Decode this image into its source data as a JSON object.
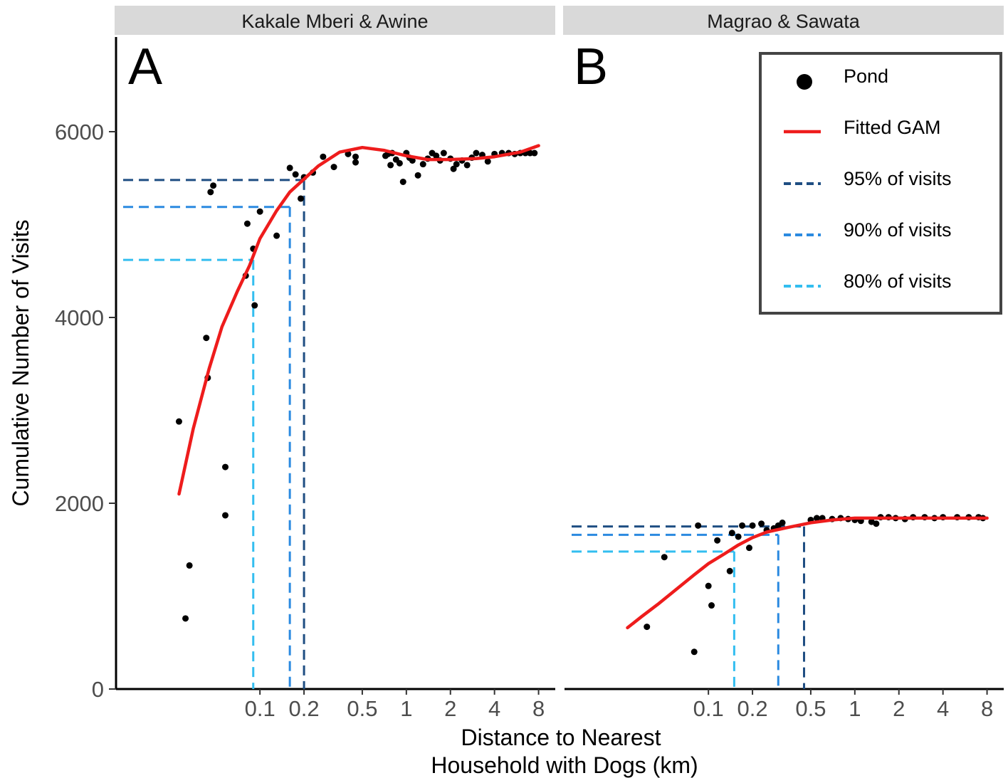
{
  "chart_data": {
    "type": "scatter",
    "xlabel": [
      "Distance to Nearest",
      "Household with Dogs (km)"
    ],
    "ylabel": "Cumulative Number of Visits",
    "x_scale": "log",
    "xlim": [
      0.015,
      10
    ],
    "ylim": [
      0,
      7000
    ],
    "x_ticks": [
      0.1,
      0.2,
      0.5,
      1,
      2,
      4,
      8
    ],
    "x_tick_labels": [
      "0.1",
      "0.2",
      "0.5",
      "1",
      "2",
      "4",
      "8"
    ],
    "y_ticks": [
      0,
      2000,
      4000,
      6000
    ],
    "y_tick_labels": [
      "0",
      "2000",
      "4000",
      "6000"
    ],
    "grid": false,
    "legend": {
      "placement": "top-right",
      "entries": [
        {
          "label": "Pond",
          "kind": "point",
          "color": "#000000"
        },
        {
          "label": "Fitted GAM",
          "kind": "line",
          "color": "#ee1c1c"
        },
        {
          "label": "95% of visits",
          "kind": "dash",
          "color": "#1f4e82"
        },
        {
          "label": "90% of visits",
          "kind": "dash",
          "color": "#2b8ae0"
        },
        {
          "label": "80% of visits",
          "kind": "dash",
          "color": "#33bef0"
        }
      ]
    },
    "panels": [
      {
        "strip": "Kakale Mberi & Awine",
        "letter": "A",
        "thresholds": [
          {
            "label": "95% of visits",
            "x": 0.2,
            "y": 5480,
            "color": "#1f4e82"
          },
          {
            "label": "90% of visits",
            "x": 0.16,
            "y": 5190,
            "color": "#2b8ae0"
          },
          {
            "label": "80% of visits",
            "x": 0.09,
            "y": 4620,
            "color": "#33bef0"
          }
        ],
        "gam": [
          [
            0.028,
            2100
          ],
          [
            0.035,
            2800
          ],
          [
            0.045,
            3450
          ],
          [
            0.055,
            3900
          ],
          [
            0.07,
            4280
          ],
          [
            0.085,
            4560
          ],
          [
            0.1,
            4850
          ],
          [
            0.13,
            5150
          ],
          [
            0.16,
            5350
          ],
          [
            0.2,
            5490
          ],
          [
            0.25,
            5630
          ],
          [
            0.35,
            5780
          ],
          [
            0.5,
            5830
          ],
          [
            0.7,
            5800
          ],
          [
            1,
            5740
          ],
          [
            1.4,
            5700
          ],
          [
            2,
            5700
          ],
          [
            3,
            5710
          ],
          [
            4,
            5730
          ],
          [
            6,
            5780
          ],
          [
            8,
            5850
          ]
        ],
        "points": [
          [
            0.028,
            2880
          ],
          [
            0.031,
            760
          ],
          [
            0.033,
            1330
          ],
          [
            0.043,
            3780
          ],
          [
            0.044,
            3350
          ],
          [
            0.046,
            5350
          ],
          [
            0.048,
            5420
          ],
          [
            0.058,
            2390
          ],
          [
            0.058,
            1870
          ],
          [
            0.08,
            4450
          ],
          [
            0.082,
            5010
          ],
          [
            0.09,
            4740
          ],
          [
            0.092,
            4130
          ],
          [
            0.1,
            5140
          ],
          [
            0.13,
            4880
          ],
          [
            0.16,
            5610
          ],
          [
            0.175,
            5540
          ],
          [
            0.19,
            5280
          ],
          [
            0.2,
            5510
          ],
          [
            0.23,
            5560
          ],
          [
            0.27,
            5730
          ],
          [
            0.32,
            5620
          ],
          [
            0.4,
            5760
          ],
          [
            0.45,
            5730
          ],
          [
            0.45,
            5670
          ],
          [
            0.72,
            5740
          ],
          [
            0.75,
            5760
          ],
          [
            0.78,
            5640
          ],
          [
            0.8,
            5770
          ],
          [
            0.85,
            5700
          ],
          [
            0.9,
            5660
          ],
          [
            0.95,
            5460
          ],
          [
            1,
            5770
          ],
          [
            1.05,
            5720
          ],
          [
            1.1,
            5690
          ],
          [
            1.2,
            5530
          ],
          [
            1.3,
            5650
          ],
          [
            1.4,
            5710
          ],
          [
            1.5,
            5770
          ],
          [
            1.6,
            5740
          ],
          [
            1.7,
            5690
          ],
          [
            1.8,
            5770
          ],
          [
            2,
            5710
          ],
          [
            2.1,
            5600
          ],
          [
            2.2,
            5650
          ],
          [
            2.4,
            5690
          ],
          [
            2.6,
            5640
          ],
          [
            2.8,
            5720
          ],
          [
            3,
            5770
          ],
          [
            3.3,
            5750
          ],
          [
            3.6,
            5680
          ],
          [
            4,
            5760
          ],
          [
            4.5,
            5770
          ],
          [
            5,
            5770
          ],
          [
            5.5,
            5760
          ],
          [
            6,
            5770
          ],
          [
            6.5,
            5770
          ],
          [
            7,
            5770
          ],
          [
            7.5,
            5770
          ]
        ]
      },
      {
        "strip": "Magrao & Sawata",
        "letter": "B",
        "thresholds": [
          {
            "label": "95% of visits",
            "x": 0.45,
            "y": 1750,
            "color": "#1f4e82"
          },
          {
            "label": "90% of visits",
            "x": 0.3,
            "y": 1660,
            "color": "#2b8ae0"
          },
          {
            "label": "80% of visits",
            "x": 0.15,
            "y": 1480,
            "color": "#33bef0"
          }
        ],
        "gam": [
          [
            0.028,
            660
          ],
          [
            0.035,
            780
          ],
          [
            0.045,
            910
          ],
          [
            0.06,
            1070
          ],
          [
            0.08,
            1230
          ],
          [
            0.1,
            1350
          ],
          [
            0.13,
            1460
          ],
          [
            0.16,
            1550
          ],
          [
            0.2,
            1630
          ],
          [
            0.25,
            1690
          ],
          [
            0.35,
            1740
          ],
          [
            0.5,
            1790
          ],
          [
            0.7,
            1820
          ],
          [
            1,
            1840
          ],
          [
            1.4,
            1840
          ],
          [
            2,
            1840
          ],
          [
            4,
            1840
          ],
          [
            8,
            1840
          ]
        ],
        "points": [
          [
            0.038,
            670
          ],
          [
            0.05,
            1420
          ],
          [
            0.08,
            400
          ],
          [
            0.085,
            1760
          ],
          [
            0.1,
            1110
          ],
          [
            0.105,
            900
          ],
          [
            0.115,
            1600
          ],
          [
            0.14,
            1270
          ],
          [
            0.145,
            1680
          ],
          [
            0.16,
            1640
          ],
          [
            0.17,
            1760
          ],
          [
            0.19,
            1520
          ],
          [
            0.2,
            1760
          ],
          [
            0.23,
            1780
          ],
          [
            0.25,
            1710
          ],
          [
            0.28,
            1730
          ],
          [
            0.3,
            1760
          ],
          [
            0.32,
            1790
          ],
          [
            0.5,
            1820
          ],
          [
            0.55,
            1840
          ],
          [
            0.6,
            1840
          ],
          [
            0.7,
            1830
          ],
          [
            0.8,
            1840
          ],
          [
            0.9,
            1830
          ],
          [
            1,
            1820
          ],
          [
            1.1,
            1810
          ],
          [
            1.3,
            1800
          ],
          [
            1.4,
            1780
          ],
          [
            1.5,
            1850
          ],
          [
            1.7,
            1850
          ],
          [
            1.9,
            1840
          ],
          [
            2.2,
            1830
          ],
          [
            2.5,
            1850
          ],
          [
            3,
            1850
          ],
          [
            3.5,
            1840
          ],
          [
            4,
            1850
          ],
          [
            5,
            1850
          ],
          [
            6,
            1850
          ],
          [
            7,
            1850
          ],
          [
            7.5,
            1840
          ]
        ]
      }
    ]
  }
}
